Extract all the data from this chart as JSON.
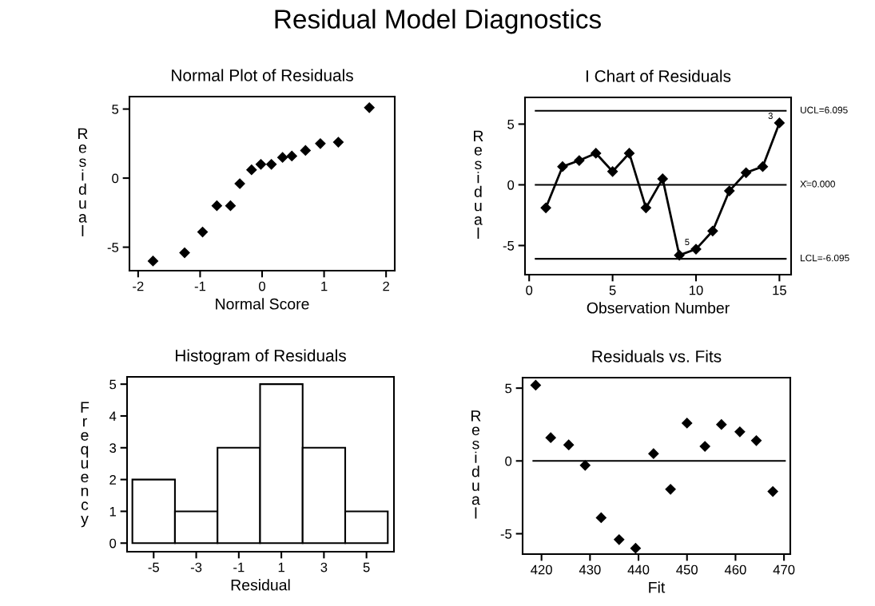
{
  "chart_data": [
    {
      "type": "scatter",
      "title": "Normal Plot of Residuals",
      "xlabel": "Normal Score",
      "ylabel": "Residual",
      "annotations": [
        "Residual Model Diagnostics"
      ],
      "x": [
        -1.76,
        -1.25,
        -0.96,
        -0.73,
        -0.51,
        -0.36,
        -0.17,
        -0.02,
        0.15,
        0.33,
        0.48,
        0.7,
        0.94,
        1.23,
        1.73
      ],
      "values": [
        -6.0,
        -5.4,
        -3.9,
        -2.0,
        -2.0,
        -0.4,
        0.6,
        1.0,
        1.0,
        1.5,
        1.6,
        2.0,
        2.5,
        2.6,
        5.1
      ],
      "color": "#000000",
      "marker": "diamond",
      "grid": false,
      "xlim": [
        -2.14,
        2.14
      ],
      "xticks": [
        -2,
        -1,
        0,
        1,
        2
      ],
      "ylim": [
        -6.7,
        5.9
      ],
      "yticks": [
        -5,
        0,
        5
      ]
    },
    {
      "type": "line",
      "title": "I Chart of Residuals",
      "xlabel": "Observation Number",
      "ylabel": "Residual",
      "x": [
        1,
        2,
        3,
        4,
        5,
        6,
        7,
        8,
        9,
        10,
        11,
        12,
        13,
        14,
        15
      ],
      "values": [
        -1.9,
        1.5,
        2.0,
        2.6,
        1.1,
        2.6,
        -1.9,
        0.5,
        -5.8,
        -5.3,
        -3.8,
        -0.5,
        1.0,
        1.5,
        5.1
      ],
      "color": "#000000",
      "marker": "diamond",
      "line_style": "solid",
      "grid": false,
      "xlim": [
        -0.25,
        15.7
      ],
      "xticks": [
        0,
        5,
        10,
        15
      ],
      "ylim": [
        -7.4,
        7.2
      ],
      "yticks": [
        -5,
        0,
        5
      ],
      "ref_lines": [
        {
          "axis": "y",
          "value": 6.095,
          "label": "UCL=6.095"
        },
        {
          "axis": "y",
          "value": 0,
          "label": "X̄=0.000"
        },
        {
          "axis": "y",
          "value": -6.095,
          "label": "LCL=-6.095"
        }
      ],
      "annotations": [
        {
          "text": "3",
          "x": 15,
          "y": 5.1
        },
        {
          "text": "5",
          "x": 10,
          "y": -5.3
        }
      ]
    },
    {
      "type": "histogram",
      "title": "Histogram of Residuals",
      "xlabel": "Residual",
      "ylabel": "Frequency",
      "bins": [
        -6,
        -4,
        -2,
        0,
        2,
        4,
        6
      ],
      "values": [
        2,
        1,
        3,
        5,
        3,
        1
      ],
      "color": "#ffffff",
      "grid": false,
      "xlim": [
        -6.25,
        6.29
      ],
      "xticks": [
        -5,
        -3,
        -1,
        1,
        3,
        5
      ],
      "ylim": [
        -0.27,
        5.23
      ],
      "yticks": [
        0,
        1,
        2,
        3,
        4,
        5
      ]
    },
    {
      "type": "scatter",
      "title": "Residuals vs. Fits",
      "xlabel": "Fit",
      "ylabel": "Residual",
      "x": [
        418.8,
        421.9,
        425.6,
        429.0,
        432.3,
        436.0,
        439.4,
        443.1,
        446.6,
        450.0,
        453.7,
        457.1,
        460.9,
        464.3,
        467.7
      ],
      "values": [
        5.2,
        1.6,
        1.1,
        -0.3,
        -3.9,
        -5.4,
        -6.0,
        0.5,
        -1.95,
        2.6,
        1.0,
        2.5,
        2.0,
        1.4,
        -2.1
      ],
      "color": "#000000",
      "marker": "diamond",
      "grid": false,
      "xlim": [
        416.1,
        471.3
      ],
      "xticks": [
        420,
        430,
        440,
        450,
        460,
        470
      ],
      "ylim": [
        -6.4,
        5.72
      ],
      "yticks": [
        -5,
        0,
        5
      ],
      "ref_lines": [
        {
          "axis": "y",
          "value": 0
        }
      ]
    }
  ]
}
